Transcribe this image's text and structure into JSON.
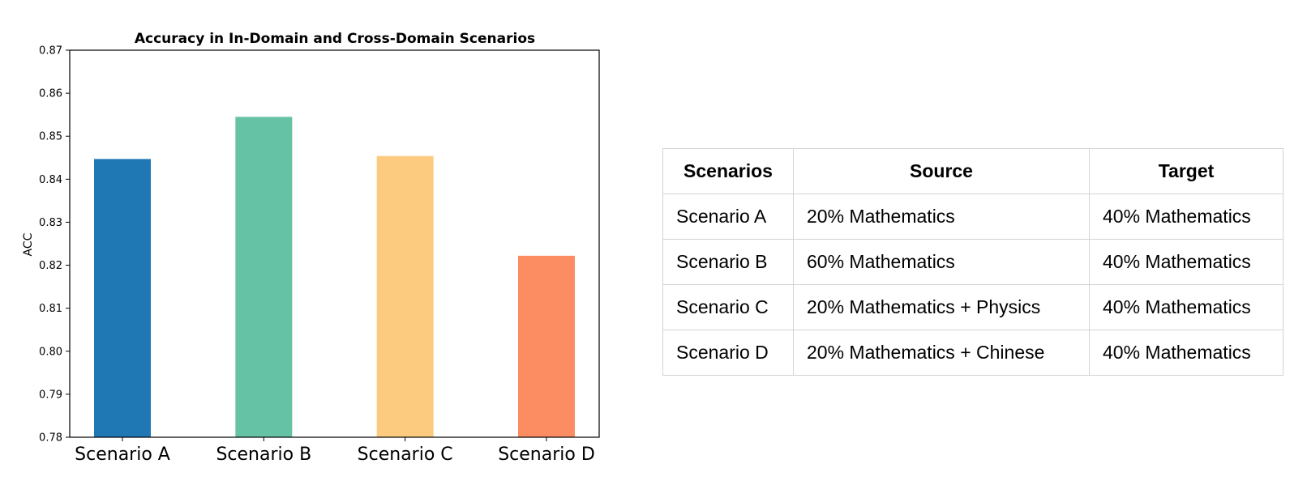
{
  "chart_data": {
    "type": "bar",
    "title": "Accuracy in In-Domain and Cross-Domain Scenarios",
    "xlabel": "",
    "ylabel": "ACC",
    "categories": [
      "Scenario A",
      "Scenario B",
      "Scenario C",
      "Scenario D"
    ],
    "values": [
      0.8447,
      0.8545,
      0.8454,
      0.8222
    ],
    "colors": [
      "#1f77b4",
      "#66c2a5",
      "#fdcb80",
      "#fc8d62"
    ],
    "ylim": [
      0.78,
      0.87
    ],
    "yticks": [
      "0.78",
      "0.79",
      "0.80",
      "0.81",
      "0.82",
      "0.83",
      "0.84",
      "0.85",
      "0.86",
      "0.87"
    ],
    "grid": false,
    "legend": "none"
  },
  "table": {
    "headers": [
      "Scenarios",
      "Source",
      "Target"
    ],
    "rows": [
      [
        "Scenario A",
        "20% Mathematics",
        "40% Mathematics"
      ],
      [
        "Scenario B",
        "60% Mathematics",
        "40% Mathematics"
      ],
      [
        "Scenario C",
        "20% Mathematics + Physics",
        "40% Mathematics"
      ],
      [
        "Scenario D",
        "20% Mathematics + Chinese",
        "40% Mathematics"
      ]
    ]
  }
}
